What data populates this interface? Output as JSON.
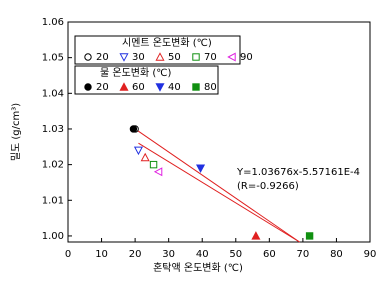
{
  "chart_data": {
    "type": "scatter",
    "xlabel": "혼탁액 온도변화 (℃)",
    "ylabel": "밀도 (g/cm³)",
    "xlim": [
      0,
      90
    ],
    "xticks": [
      0,
      10,
      20,
      30,
      40,
      50,
      60,
      70,
      80,
      90
    ],
    "ylim": [
      0.9983,
      1.06
    ],
    "yticks": [
      {
        "value": 1,
        "label": "1.00"
      },
      {
        "value": 1.01,
        "label": "1.01"
      },
      {
        "value": 1.02,
        "label": "1.02"
      },
      {
        "value": 1.03,
        "label": "1.03"
      },
      {
        "value": 1.04,
        "label": "1.04"
      },
      {
        "value": 1.05,
        "label": "1.05"
      },
      {
        "value": 1.06,
        "label": "1.06"
      }
    ],
    "grid": false,
    "groups": [
      {
        "title": "시멘트 온도변화 (℃)",
        "series": [
          {
            "name": "20",
            "marker": "circle-open",
            "color": "#000000",
            "x": [
              20
            ],
            "values": [
              1.03
            ]
          },
          {
            "name": "30",
            "marker": "tri-down-open",
            "color": "#2030e0",
            "x": [
              21
            ],
            "values": [
              1.024
            ]
          },
          {
            "name": "50",
            "marker": "tri-up-open",
            "color": "#e02020",
            "x": [
              23
            ],
            "values": [
              1.022
            ]
          },
          {
            "name": "70",
            "marker": "square-open",
            "color": "#109010",
            "x": [
              25.5
            ],
            "values": [
              1.02
            ]
          },
          {
            "name": "90",
            "marker": "tri-left-open",
            "color": "#e020e0",
            "x": [
              27
            ],
            "values": [
              1.018
            ]
          }
        ]
      },
      {
        "title": "물 온도변화 (℃)",
        "series": [
          {
            "name": "20",
            "marker": "circle",
            "color": "#000000",
            "x": [
              19.5
            ],
            "values": [
              1.03
            ]
          },
          {
            "name": "60",
            "marker": "tri-up",
            "color": "#e02020",
            "x": [
              56
            ],
            "values": [
              1.0
            ]
          },
          {
            "name": "40",
            "marker": "tri-down",
            "color": "#2030e0",
            "x": [
              39.5
            ],
            "values": [
              1.019
            ]
          },
          {
            "name": "80",
            "marker": "square",
            "color": "#109010",
            "x": [
              72
            ],
            "values": [
              1.0
            ]
          }
        ]
      }
    ],
    "lines": [
      {
        "color": "#e02020",
        "x": [
          20,
          69
        ],
        "values": [
          1.03,
          0.9983
        ]
      },
      {
        "color": "#e02020",
        "x": [
          21,
          69
        ],
        "values": [
          1.026,
          0.9983
        ]
      }
    ],
    "annotations": [
      "Y=1.03676x-5.57161E-4",
      "(R=-0.9266)"
    ]
  }
}
